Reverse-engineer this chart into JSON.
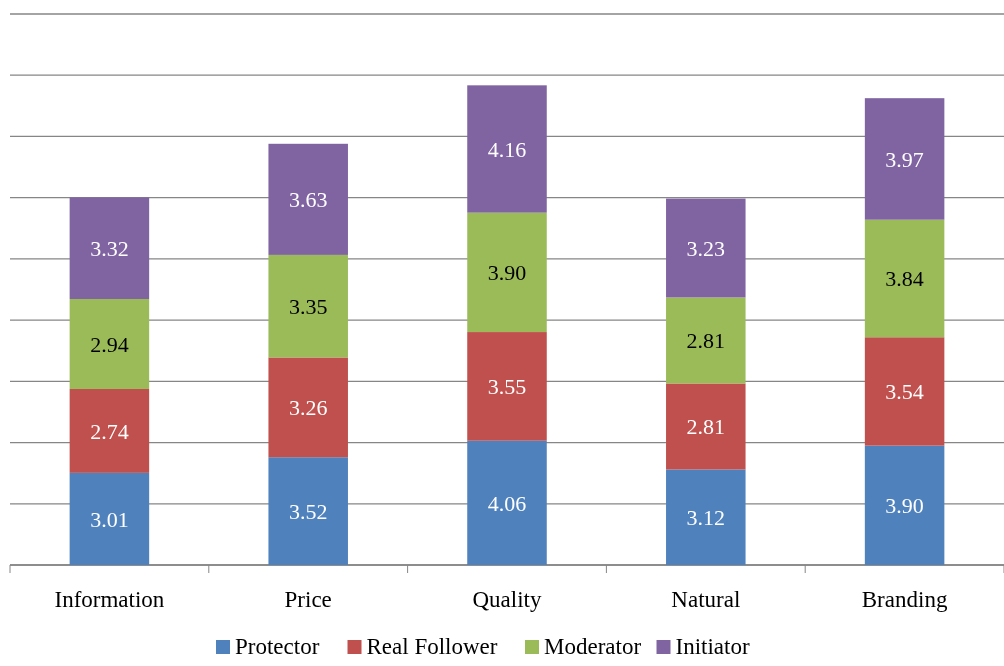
{
  "chart_data": {
    "type": "bar",
    "stacked": true,
    "categories": [
      "Information",
      "Price",
      "Quality",
      "Natural",
      "Branding"
    ],
    "series": [
      {
        "name": "Protector",
        "color": "#4f81bd",
        "values": [
          3.01,
          3.52,
          4.06,
          3.12,
          3.9
        ],
        "value_labels": [
          "3.01",
          "3.52",
          "4.06",
          "3.12",
          "3.90"
        ]
      },
      {
        "name": "Real Follower",
        "color": "#c0504d",
        "values": [
          2.74,
          3.26,
          3.55,
          2.81,
          3.54
        ],
        "value_labels": [
          "2.74",
          "3.26",
          "3.55",
          "2.81",
          "3.54"
        ]
      },
      {
        "name": "Moderator",
        "color": "#9bbb59",
        "values": [
          2.94,
          3.35,
          3.9,
          2.81,
          3.84
        ],
        "value_labels": [
          "2.94",
          "3.35",
          "3.90",
          "2.81",
          "3.84"
        ]
      },
      {
        "name": "Initiator",
        "color": "#8064a2",
        "values": [
          3.32,
          3.63,
          4.16,
          3.23,
          3.97
        ],
        "value_labels": [
          "3.32",
          "3.63",
          "4.16",
          "3.23",
          "3.97"
        ]
      }
    ],
    "ylim": [
      0,
      18
    ],
    "yticks": [
      {
        "value": 0,
        "label": null
      },
      {
        "value": 2,
        "label": null
      },
      {
        "value": 4,
        "label": null
      },
      {
        "value": 6,
        "label": null
      },
      {
        "value": 8,
        "label": null
      },
      {
        "value": 10,
        "label": null
      },
      {
        "value": 12,
        "label": null
      },
      {
        "value": 14,
        "label": null
      },
      {
        "value": 16,
        "label": null
      },
      {
        "value": 18,
        "label": null
      }
    ],
    "grid": "y",
    "tick_labels": "x",
    "legend": "bottom"
  }
}
